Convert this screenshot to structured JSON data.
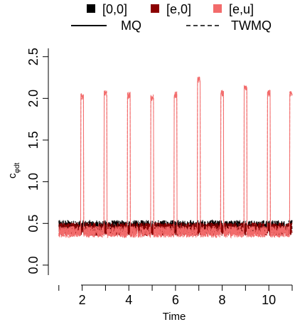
{
  "chart_data": {
    "type": "line",
    "title": "",
    "xlabel": "Time",
    "ylabel": "c",
    "ylabel_subscript": "φdt",
    "xlim": [
      0.55,
      11.0
    ],
    "ylim": [
      -0.12,
      2.6
    ],
    "xticks": [
      2,
      4,
      6,
      8,
      10
    ],
    "xtick_labels": [
      "2",
      "4",
      "6",
      "8",
      "10"
    ],
    "yticks": [
      0.0,
      0.5,
      1.0,
      1.5,
      2.0,
      2.5
    ],
    "ytick_labels": [
      "0.0",
      "0.5",
      "1.0",
      "1.5",
      "2.0",
      "2.5"
    ],
    "grid": false,
    "legend_position": "top",
    "legend_colors": [
      {
        "label": "[0,0]",
        "color": "#000000"
      },
      {
        "label": "[e,0]",
        "color": "#8b0000"
      },
      {
        "label": "[e,u]",
        "color": "#f26b6b"
      }
    ],
    "legend_linetypes": [
      {
        "label": "MQ",
        "style": "solid"
      },
      {
        "label": "TWMQ",
        "style": "dashed"
      }
    ],
    "baseline_level": {
      "[0,0]": 0.46,
      "[e,0]": 0.43,
      "[e,u]": 0.4
    },
    "spikes": [
      {
        "series": "[e,u]",
        "x": 2.0,
        "peak": 2.06
      },
      {
        "series": "[e,u]",
        "x": 3.0,
        "peak": 2.1
      },
      {
        "series": "[e,u]",
        "x": 4.0,
        "peak": 2.08
      },
      {
        "series": "[e,u]",
        "x": 5.0,
        "peak": 2.05
      },
      {
        "series": "[e,u]",
        "x": 6.0,
        "peak": 2.08
      },
      {
        "series": "[e,u]",
        "x": 7.0,
        "peak": 2.26
      },
      {
        "series": "[e,u]",
        "x": 8.0,
        "peak": 2.1
      },
      {
        "series": "[e,u]",
        "x": 9.0,
        "peak": 2.17
      },
      {
        "series": "[e,u]",
        "x": 10.0,
        "peak": 2.1
      },
      {
        "series": "[e,u]",
        "x": 10.95,
        "peak": 2.1
      }
    ]
  }
}
